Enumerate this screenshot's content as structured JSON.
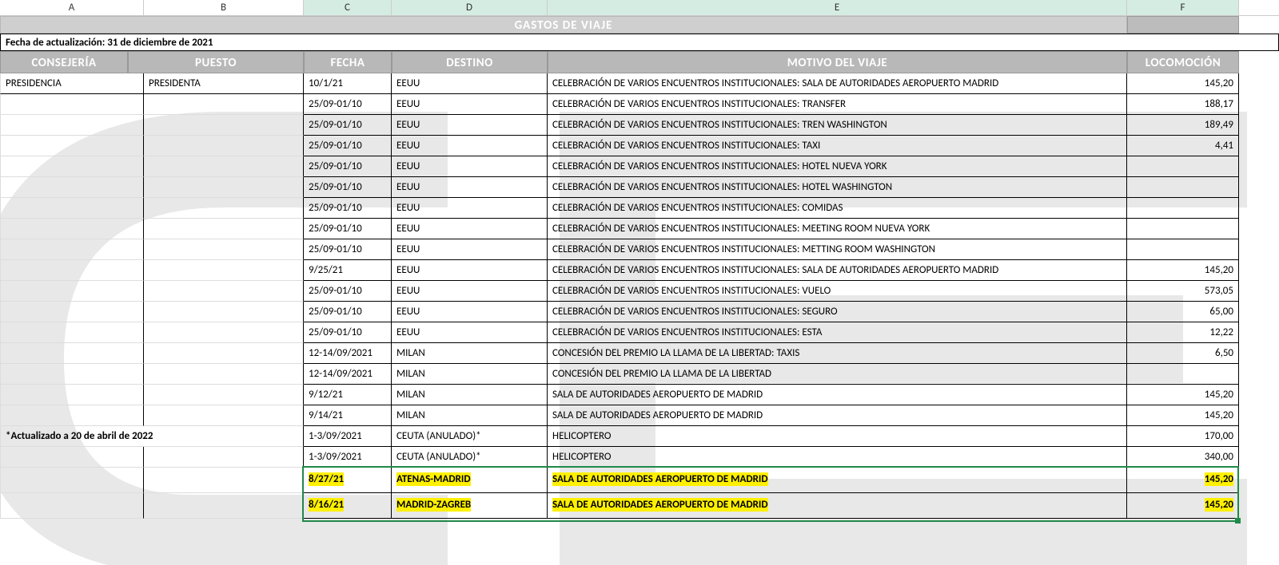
{
  "columns": {
    "A": "A",
    "B": "B",
    "C": "C",
    "D": "D",
    "E": "E",
    "F": "F"
  },
  "title": "GASTOS DE VIAJE",
  "update_line": "Fecha de actualización: 31 de diciembre de 2021",
  "band": {
    "consejeria": "CONSEJERÍA",
    "puesto": "PUESTO",
    "fecha": "FECHA",
    "destino": "DESTINO",
    "motivo": "MOTIVO DEL VIAJE",
    "locomocion": "LOCOMOCIÓN"
  },
  "note": "*Actualizado a 20 de abril de 2022",
  "rows": [
    {
      "a": "PRESIDENCIA",
      "b": "PRESIDENTA",
      "c": "10/1/21",
      "d": "EEUU",
      "e": "CELEBRACIÓN DE VARIOS ENCUENTROS INSTITUCIONALES: SALA DE AUTORIDADES AEROPUERTO MADRID",
      "f": "145,20"
    },
    {
      "a": "",
      "b": "",
      "c": "25/09-01/10",
      "d": "EEUU",
      "e": "CELEBRACIÓN DE VARIOS ENCUENTROS INSTITUCIONALES: TRANSFER",
      "f": "188,17"
    },
    {
      "a": "",
      "b": "",
      "c": "25/09-01/10",
      "d": "EEUU",
      "e": "CELEBRACIÓN DE VARIOS ENCUENTROS INSTITUCIONALES: TREN WASHINGTON",
      "f": "189,49"
    },
    {
      "a": "",
      "b": "",
      "c": "25/09-01/10",
      "d": "EEUU",
      "e": "CELEBRACIÓN DE VARIOS ENCUENTROS INSTITUCIONALES: TAXI",
      "f": "4,41"
    },
    {
      "a": "",
      "b": "",
      "c": "25/09-01/10",
      "d": "EEUU",
      "e": "CELEBRACIÓN DE VARIOS ENCUENTROS INSTITUCIONALES: HOTEL NUEVA YORK",
      "f": ""
    },
    {
      "a": "",
      "b": "",
      "c": "25/09-01/10",
      "d": "EEUU",
      "e": "CELEBRACIÓN DE VARIOS ENCUENTROS INSTITUCIONALES: HOTEL WASHINGTON",
      "f": ""
    },
    {
      "a": "",
      "b": "",
      "c": "25/09-01/10",
      "d": "EEUU",
      "e": "CELEBRACIÓN DE VARIOS ENCUENTROS INSTITUCIONALES: COMIDAS",
      "f": ""
    },
    {
      "a": "",
      "b": "",
      "c": "25/09-01/10",
      "d": "EEUU",
      "e": "CELEBRACIÓN DE VARIOS ENCUENTROS INSTITUCIONALES: MEETING ROOM NUEVA YORK",
      "f": ""
    },
    {
      "a": "",
      "b": "",
      "c": "25/09-01/10",
      "d": "EEUU",
      "e": "CELEBRACIÓN DE VARIOS ENCUENTROS INSTITUCIONALES: METTING ROOM WASHINGTON",
      "f": ""
    },
    {
      "a": "",
      "b": "",
      "c": "9/25/21",
      "d": "EEUU",
      "e": "CELEBRACIÓN DE VARIOS ENCUENTROS INSTITUCIONALES: SALA DE AUTORIDADES AEROPUERTO MADRID",
      "f": "145,20"
    },
    {
      "a": "",
      "b": "",
      "c": "25/09-01/10",
      "d": "EEUU",
      "e": "CELEBRACIÓN DE VARIOS ENCUENTROS INSTITUCIONALES: VUELO",
      "f": "573,05"
    },
    {
      "a": "",
      "b": "",
      "c": "25/09-01/10",
      "d": "EEUU",
      "e": "CELEBRACIÓN DE VARIOS ENCUENTROS INSTITUCIONALES: SEGURO",
      "f": "65,00"
    },
    {
      "a": "",
      "b": "",
      "c": "25/09-01/10",
      "d": "EEUU",
      "e": "CELEBRACIÓN DE VARIOS ENCUENTROS INSTITUCIONALES: ESTA",
      "f": "12,22"
    },
    {
      "a": "",
      "b": "",
      "c": "12-14/09/2021",
      "d": "MILAN",
      "e": "CONCESIÓN DEL PREMIO LA LLAMA DE LA LIBERTAD: TAXIS",
      "f": "6,50"
    },
    {
      "a": "",
      "b": "",
      "c": "12-14/09/2021",
      "d": "MILAN",
      "e": "CONCESIÓN DEL PREMIO LA LLAMA DE LA LIBERTAD",
      "f": ""
    },
    {
      "a": "",
      "b": "",
      "c": "9/12/21",
      "d": "MILAN",
      "e": "SALA DE AUTORIDADES AEROPUERTO DE MADRID",
      "f": "145,20"
    },
    {
      "a": "",
      "b": "",
      "c": "9/14/21",
      "d": "MILAN",
      "e": "SALA DE AUTORIDADES AEROPUERTO DE MADRID",
      "f": "145,20"
    },
    {
      "a": "*Actualizado a 20 de abril de 2022",
      "b": "",
      "c": "1-3/09/2021",
      "d": "CEUTA (ANULADO)*",
      "e": "HELICOPTERO",
      "f": "170,00"
    },
    {
      "a": "",
      "b": "",
      "c": "1-3/09/2021",
      "d": "CEUTA (ANULADO)*",
      "e": "HELICOPTERO",
      "f": "340,00"
    },
    {
      "a": "",
      "b": "",
      "c": "8/27/21",
      "d": "ATENAS-MADRID",
      "e": "SALA DE AUTORIDADES AEROPUERTO DE MADRID",
      "f": "145,20",
      "hl": true
    },
    {
      "a": "",
      "b": "",
      "c": "8/16/21",
      "d": "MADRID-ZAGREB",
      "e": "SALA DE AUTORIDADES AEROPUERTO DE MADRID",
      "f": "145,20",
      "hl": true
    }
  ],
  "styling": {
    "header_bg": "#bcbcbc",
    "header_fg": "#ffffff",
    "highlight_bg": "#fff000",
    "selection_border": "#1f8a49",
    "sel_col_bg": "#d5ece3",
    "grid": "#cccccc",
    "row_border": "#000000",
    "fontsize_body": 13,
    "fontsize_header": 15
  }
}
